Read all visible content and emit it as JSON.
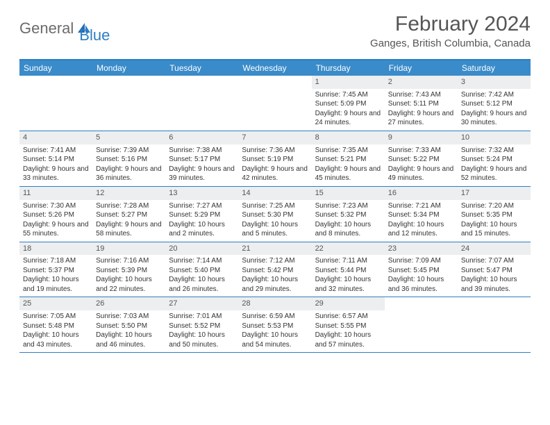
{
  "logo": {
    "part1": "General",
    "part2": "Blue"
  },
  "title": "February 2024",
  "location": "Ganges, British Columbia, Canada",
  "colors": {
    "header_bg": "#3a8bc9",
    "border": "#2d7dc4",
    "daynum_bg": "#eceeef",
    "text": "#333333",
    "title_text": "#555555"
  },
  "weekdays": [
    "Sunday",
    "Monday",
    "Tuesday",
    "Wednesday",
    "Thursday",
    "Friday",
    "Saturday"
  ],
  "weeks": [
    [
      null,
      null,
      null,
      null,
      {
        "n": "1",
        "sr": "7:45 AM",
        "ss": "5:09 PM",
        "dl": "9 hours and 24 minutes."
      },
      {
        "n": "2",
        "sr": "7:43 AM",
        "ss": "5:11 PM",
        "dl": "9 hours and 27 minutes."
      },
      {
        "n": "3",
        "sr": "7:42 AM",
        "ss": "5:12 PM",
        "dl": "9 hours and 30 minutes."
      }
    ],
    [
      {
        "n": "4",
        "sr": "7:41 AM",
        "ss": "5:14 PM",
        "dl": "9 hours and 33 minutes."
      },
      {
        "n": "5",
        "sr": "7:39 AM",
        "ss": "5:16 PM",
        "dl": "9 hours and 36 minutes."
      },
      {
        "n": "6",
        "sr": "7:38 AM",
        "ss": "5:17 PM",
        "dl": "9 hours and 39 minutes."
      },
      {
        "n": "7",
        "sr": "7:36 AM",
        "ss": "5:19 PM",
        "dl": "9 hours and 42 minutes."
      },
      {
        "n": "8",
        "sr": "7:35 AM",
        "ss": "5:21 PM",
        "dl": "9 hours and 45 minutes."
      },
      {
        "n": "9",
        "sr": "7:33 AM",
        "ss": "5:22 PM",
        "dl": "9 hours and 49 minutes."
      },
      {
        "n": "10",
        "sr": "7:32 AM",
        "ss": "5:24 PM",
        "dl": "9 hours and 52 minutes."
      }
    ],
    [
      {
        "n": "11",
        "sr": "7:30 AM",
        "ss": "5:26 PM",
        "dl": "9 hours and 55 minutes."
      },
      {
        "n": "12",
        "sr": "7:28 AM",
        "ss": "5:27 PM",
        "dl": "9 hours and 58 minutes."
      },
      {
        "n": "13",
        "sr": "7:27 AM",
        "ss": "5:29 PM",
        "dl": "10 hours and 2 minutes."
      },
      {
        "n": "14",
        "sr": "7:25 AM",
        "ss": "5:30 PM",
        "dl": "10 hours and 5 minutes."
      },
      {
        "n": "15",
        "sr": "7:23 AM",
        "ss": "5:32 PM",
        "dl": "10 hours and 8 minutes."
      },
      {
        "n": "16",
        "sr": "7:21 AM",
        "ss": "5:34 PM",
        "dl": "10 hours and 12 minutes."
      },
      {
        "n": "17",
        "sr": "7:20 AM",
        "ss": "5:35 PM",
        "dl": "10 hours and 15 minutes."
      }
    ],
    [
      {
        "n": "18",
        "sr": "7:18 AM",
        "ss": "5:37 PM",
        "dl": "10 hours and 19 minutes."
      },
      {
        "n": "19",
        "sr": "7:16 AM",
        "ss": "5:39 PM",
        "dl": "10 hours and 22 minutes."
      },
      {
        "n": "20",
        "sr": "7:14 AM",
        "ss": "5:40 PM",
        "dl": "10 hours and 26 minutes."
      },
      {
        "n": "21",
        "sr": "7:12 AM",
        "ss": "5:42 PM",
        "dl": "10 hours and 29 minutes."
      },
      {
        "n": "22",
        "sr": "7:11 AM",
        "ss": "5:44 PM",
        "dl": "10 hours and 32 minutes."
      },
      {
        "n": "23",
        "sr": "7:09 AM",
        "ss": "5:45 PM",
        "dl": "10 hours and 36 minutes."
      },
      {
        "n": "24",
        "sr": "7:07 AM",
        "ss": "5:47 PM",
        "dl": "10 hours and 39 minutes."
      }
    ],
    [
      {
        "n": "25",
        "sr": "7:05 AM",
        "ss": "5:48 PM",
        "dl": "10 hours and 43 minutes."
      },
      {
        "n": "26",
        "sr": "7:03 AM",
        "ss": "5:50 PM",
        "dl": "10 hours and 46 minutes."
      },
      {
        "n": "27",
        "sr": "7:01 AM",
        "ss": "5:52 PM",
        "dl": "10 hours and 50 minutes."
      },
      {
        "n": "28",
        "sr": "6:59 AM",
        "ss": "5:53 PM",
        "dl": "10 hours and 54 minutes."
      },
      {
        "n": "29",
        "sr": "6:57 AM",
        "ss": "5:55 PM",
        "dl": "10 hours and 57 minutes."
      },
      null,
      null
    ]
  ],
  "labels": {
    "sunrise": "Sunrise: ",
    "sunset": "Sunset: ",
    "daylight": "Daylight: "
  }
}
